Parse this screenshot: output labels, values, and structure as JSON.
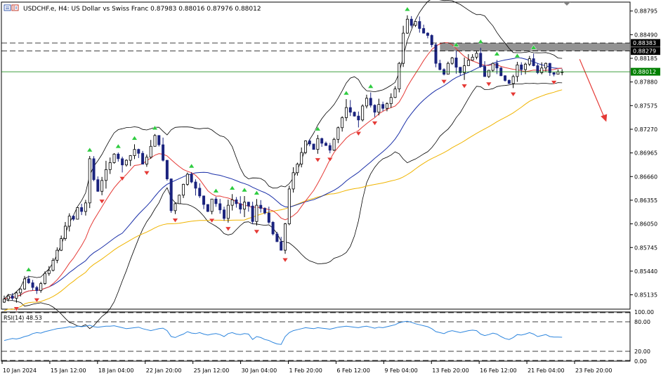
{
  "header": {
    "symbol_line": "USDCHF.e, H4:  US Dollar vs Swiss Franc  0.87983 0.88016 0.87976 0.88012"
  },
  "rsi_label": "RSI(14) 48.53",
  "colors": {
    "bull_candle": "#000000",
    "bear_candle": "#1a237e",
    "ma_fast": "#e53935",
    "ma_mid": "#1a2fa8",
    "ma_slow": "#f0b400",
    "bollinger": "#000000",
    "rsi_line": "#2e86de",
    "current_price_line": "#008000",
    "up_arrow": "#2ecc40",
    "down_arrow": "#e53935",
    "forecast_arrow": "#e53935",
    "resistance_zone": "#808080"
  },
  "chart_data": {
    "type": "candlestick",
    "symbol": "USDCHF.e",
    "timeframe": "H4",
    "instrument": "US Dollar vs Swiss Franc",
    "ohlc_last": {
      "open": 0.87983,
      "high": 0.88016,
      "low": 0.87976,
      "close": 0.88012
    },
    "ylim": [
      0.8495,
      0.8891
    ],
    "y_ticks": [
      "0.88795",
      "0.88490",
      "0.88185",
      "0.87880",
      "0.87575",
      "0.87270",
      "0.86965",
      "0.86660",
      "0.86355",
      "0.86050",
      "0.85745",
      "0.85440",
      "0.85135"
    ],
    "x_ticks": [
      "10 Jan 2024",
      "15 Jan 12:00",
      "18 Jan 04:00",
      "22 Jan 20:00",
      "25 Jan 12:00",
      "30 Jan 04:00",
      "1 Feb 20:00",
      "6 Feb 12:00",
      "9 Feb 04:00",
      "13 Feb 20:00",
      "16 Feb 12:00",
      "21 Feb 04:00",
      "23 Feb 20:00"
    ],
    "price_tags": [
      {
        "label": "0.88383",
        "value": 0.88383,
        "kind": "level"
      },
      {
        "label": "0.88279",
        "value": 0.88279,
        "kind": "level"
      },
      {
        "label": "0.88012",
        "value": 0.88012,
        "kind": "current"
      }
    ],
    "resistance_zone": [
      0.88279,
      0.88383
    ],
    "close_series": [
      0.8508,
      0.8512,
      0.8509,
      0.8516,
      0.8521,
      0.8534,
      0.8529,
      0.8523,
      0.8519,
      0.8528,
      0.8541,
      0.8545,
      0.8558,
      0.8571,
      0.8586,
      0.8602,
      0.8615,
      0.8611,
      0.8626,
      0.8621,
      0.8632,
      0.8689,
      0.8662,
      0.8647,
      0.8661,
      0.8675,
      0.8684,
      0.8695,
      0.8689,
      0.8681,
      0.8687,
      0.8693,
      0.8701,
      0.8696,
      0.8682,
      0.8691,
      0.8705,
      0.8719,
      0.8707,
      0.8687,
      0.8663,
      0.8622,
      0.8631,
      0.8642,
      0.8656,
      0.8669,
      0.8659,
      0.8651,
      0.8641,
      0.863,
      0.8621,
      0.8637,
      0.8631,
      0.8623,
      0.8612,
      0.8629,
      0.8636,
      0.8631,
      0.8624,
      0.8633,
      0.8628,
      0.8608,
      0.8629,
      0.8625,
      0.8619,
      0.8607,
      0.8592,
      0.8582,
      0.8571,
      0.8605,
      0.865,
      0.8671,
      0.8682,
      0.8697,
      0.8712,
      0.8708,
      0.8701,
      0.8715,
      0.8709,
      0.8706,
      0.87,
      0.8714,
      0.8729,
      0.8742,
      0.8755,
      0.8749,
      0.8744,
      0.8739,
      0.8757,
      0.8767,
      0.8758,
      0.8749,
      0.8759,
      0.8754,
      0.876,
      0.8768,
      0.8779,
      0.8812,
      0.8851,
      0.8869,
      0.8861,
      0.8866,
      0.8857,
      0.8851,
      0.8848,
      0.8836,
      0.8812,
      0.8804,
      0.8798,
      0.8812,
      0.8819,
      0.8807,
      0.88,
      0.8809,
      0.8816,
      0.882,
      0.8825,
      0.8808,
      0.8795,
      0.8803,
      0.8812,
      0.8806,
      0.8796,
      0.879,
      0.8786,
      0.8795,
      0.881,
      0.8804,
      0.8811,
      0.8818,
      0.8809,
      0.88,
      0.8806,
      0.8812,
      0.88,
      0.8798,
      0.8801,
      0.8801
    ],
    "indicators": [
      {
        "name": "Bollinger Bands",
        "color": "#000000"
      },
      {
        "name": "MA fast",
        "color": "#e53935"
      },
      {
        "name": "MA mid",
        "color": "#1a2fa8"
      },
      {
        "name": "MA slow",
        "color": "#f0b400"
      }
    ],
    "rsi": {
      "period": 14,
      "last": 48.53,
      "ylim": [
        0,
        100
      ],
      "ticks": [
        "100.00",
        "80.00",
        "20.00",
        "0.00"
      ],
      "levels": [
        80,
        20
      ],
      "values": [
        42,
        44,
        46,
        45,
        47,
        50,
        52,
        56,
        58,
        57,
        60,
        62,
        64,
        66,
        67,
        68,
        70,
        69,
        71,
        70,
        71,
        73,
        70,
        69,
        70,
        71,
        71,
        72,
        70,
        68,
        66,
        67,
        68,
        69,
        66,
        64,
        62,
        64,
        66,
        67,
        62,
        50,
        48,
        52,
        55,
        60,
        57,
        56,
        58,
        55,
        53,
        55,
        56,
        54,
        50,
        56,
        58,
        55,
        54,
        56,
        55,
        44,
        50,
        48,
        44,
        42,
        38,
        35,
        34,
        50,
        58,
        62,
        64,
        66,
        68,
        67,
        66,
        68,
        67,
        66,
        65,
        67,
        69,
        70,
        71,
        70,
        69,
        68,
        70,
        71,
        69,
        67,
        69,
        68,
        70,
        72,
        74,
        78,
        80,
        81,
        79,
        76,
        74,
        72,
        70,
        66,
        60,
        58,
        56,
        60,
        62,
        60,
        58,
        60,
        62,
        63,
        62,
        55,
        52,
        54,
        57,
        55,
        50,
        46,
        44,
        48,
        54,
        53,
        55,
        58,
        55,
        50,
        52,
        54,
        50,
        49,
        49,
        48.53
      ]
    }
  }
}
